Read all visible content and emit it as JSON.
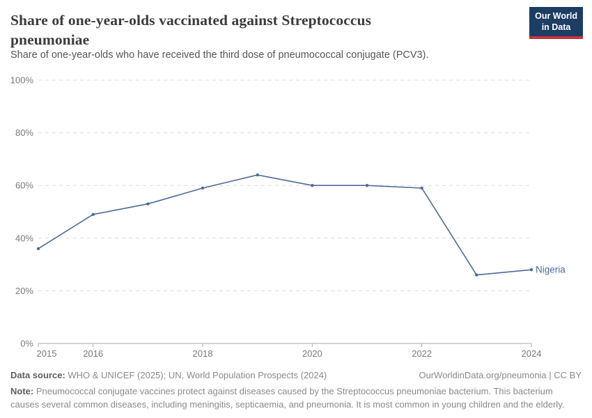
{
  "header": {
    "title": "Share of one-year-olds vaccinated against Streptococcus pneumoniae",
    "subtitle": "Share of one-year-olds who have received the third dose of pneumococcal conjugate (PCV3).",
    "logo_line1": "Our World",
    "logo_line2": "in Data",
    "logo_bg_color": "#1d3d63",
    "logo_bar_color": "#c5343a"
  },
  "chart_data": {
    "type": "line",
    "title": "Share of one-year-olds vaccinated against Streptococcus pneumoniae",
    "xlabel": "",
    "ylabel": "",
    "x": [
      2015,
      2016,
      2017,
      2018,
      2019,
      2020,
      2021,
      2022,
      2023,
      2024
    ],
    "series": [
      {
        "name": "Nigeria",
        "values": [
          36,
          49,
          53,
          59,
          64,
          60,
          60,
          59,
          26,
          28
        ],
        "color": "#4C6A9C"
      }
    ],
    "xlim": [
      2015,
      2024
    ],
    "ylim": [
      0,
      100
    ],
    "x_tick_years": [
      2015,
      2016,
      2018,
      2020,
      2022,
      2024
    ],
    "y_tick_values": [
      0,
      20,
      40,
      60,
      80,
      100
    ],
    "y_tick_labels": [
      "0%",
      "20%",
      "40%",
      "60%",
      "80%",
      "100%"
    ],
    "grid": "horizontal-dashed",
    "grid_color": "#dcdcdc",
    "axis_color": "#a8a8a8",
    "tick_label_color": "#7a7a7a",
    "end_label": "Nigeria",
    "end_label_color": "#4C6A9C",
    "legend_position": "line-end"
  },
  "footer": {
    "datasource_label": "Data source:",
    "datasource_text": " WHO & UNICEF (2025); UN, World Population Prospects (2024)",
    "link_text": "OurWorldinData.org/pneumonia | CC BY",
    "note_label": "Note:",
    "note_text": " Pneumococcal conjugate vaccines protect against diseases caused by the Streptococcus pneumoniae bacterium. This bacterium causes several common diseases, including meningitis, septicaemia, and pneumonia. It is most common in young children and the elderly."
  }
}
